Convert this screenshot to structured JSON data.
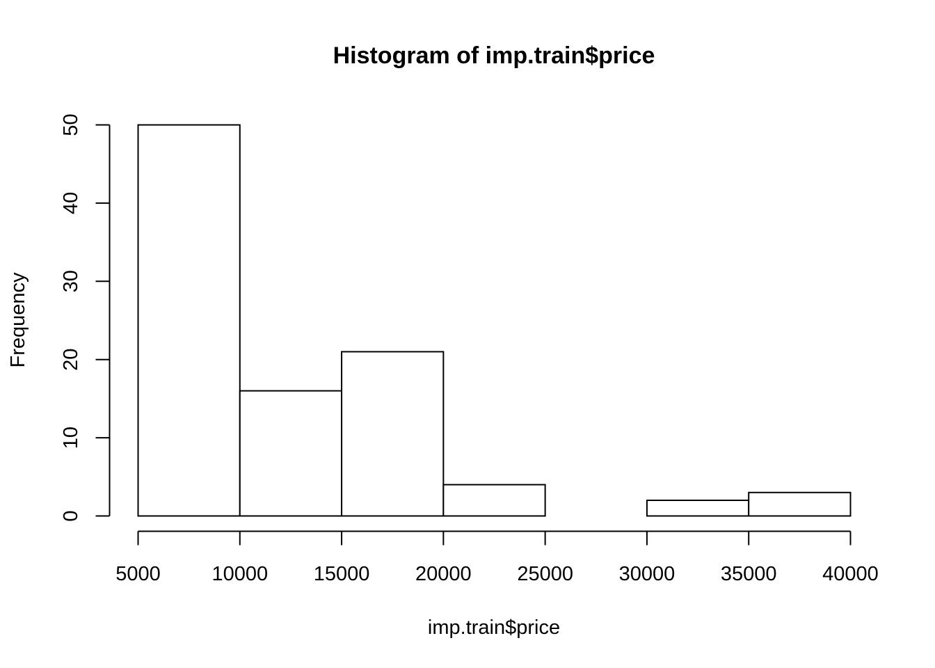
{
  "chart_data": {
    "type": "histogram",
    "title": "Histogram of imp.train$price",
    "xlabel": "imp.train$price",
    "ylabel": "Frequency",
    "bins": [
      {
        "x0": 5000,
        "x1": 10000,
        "count": 50
      },
      {
        "x0": 10000,
        "x1": 15000,
        "count": 16
      },
      {
        "x0": 15000,
        "x1": 20000,
        "count": 21
      },
      {
        "x0": 20000,
        "x1": 25000,
        "count": 4
      },
      {
        "x0": 25000,
        "x1": 30000,
        "count": 0
      },
      {
        "x0": 30000,
        "x1": 35000,
        "count": 2
      },
      {
        "x0": 35000,
        "x1": 40000,
        "count": 3
      }
    ],
    "xlim": [
      5000,
      40000
    ],
    "ylim": [
      0,
      50
    ],
    "x_ticks": [
      5000,
      10000,
      15000,
      20000,
      25000,
      30000,
      35000,
      40000
    ],
    "x_tick_labels": [
      "5000",
      "10000",
      "15000",
      "20000",
      "25000",
      "30000",
      "35000",
      "40000"
    ],
    "y_ticks": [
      0,
      10,
      20,
      30,
      40,
      50
    ],
    "y_tick_labels": [
      "0",
      "10",
      "20",
      "30",
      "40",
      "50"
    ],
    "bar_fill": "#ffffff",
    "bar_stroke": "#000000",
    "grid": false,
    "legend": "none"
  }
}
